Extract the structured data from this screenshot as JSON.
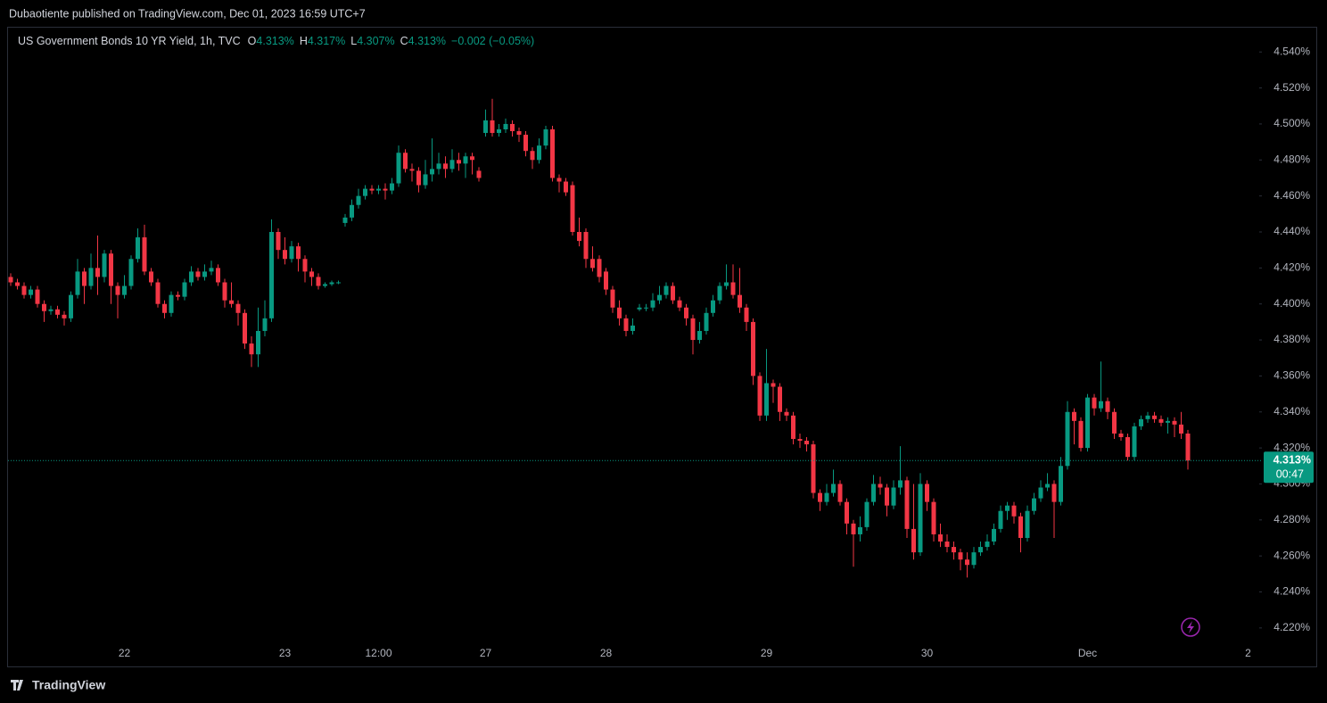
{
  "chart_data": {
    "type": "candlestick",
    "publisher": "Dubaotiente published on TradingView.com, Dec 01, 2023 16:59 UTC+7",
    "title": "US Government Bonds 10 YR Yield, 1h, TVC",
    "legend": [
      {
        "key": "O",
        "value": "4.313%"
      },
      {
        "key": "H",
        "value": "4.317%"
      },
      {
        "key": "L",
        "value": "4.307%"
      },
      {
        "key": "C",
        "value": "4.313%"
      }
    ],
    "change": "−0.002 (−0.05%)",
    "brand": "TradingView",
    "up_color": "#089981",
    "down_color": "#f23645",
    "ylim": [
      4.212,
      4.554
    ],
    "yticks": [
      {
        "value": 4.22,
        "label": "4.220%"
      },
      {
        "value": 4.24,
        "label": "4.240%"
      },
      {
        "value": 4.26,
        "label": "4.260%"
      },
      {
        "value": 4.28,
        "label": "4.280%"
      },
      {
        "value": 4.3,
        "label": "4.300%"
      },
      {
        "value": 4.32,
        "label": "4.320%"
      },
      {
        "value": 4.34,
        "label": "4.340%"
      },
      {
        "value": 4.36,
        "label": "4.360%"
      },
      {
        "value": 4.38,
        "label": "4.380%"
      },
      {
        "value": 4.4,
        "label": "4.400%"
      },
      {
        "value": 4.42,
        "label": "4.420%"
      },
      {
        "value": 4.44,
        "label": "4.440%"
      },
      {
        "value": 4.46,
        "label": "4.460%"
      },
      {
        "value": 4.48,
        "label": "4.480%"
      },
      {
        "value": 4.5,
        "label": "4.500%"
      },
      {
        "value": 4.52,
        "label": "4.520%"
      },
      {
        "value": 4.54,
        "label": "4.540%"
      }
    ],
    "price_line": {
      "value": 4.313,
      "label": "4.313%"
    },
    "countdown": "00:47",
    "categories": [
      null,
      null,
      null,
      null,
      null,
      null,
      null,
      null,
      null,
      null,
      null,
      null,
      null,
      null,
      null,
      null,
      null,
      "22",
      null,
      null,
      null,
      null,
      null,
      null,
      null,
      null,
      null,
      null,
      null,
      null,
      null,
      null,
      null,
      null,
      null,
      null,
      null,
      null,
      null,
      null,
      null,
      "23",
      null,
      null,
      null,
      null,
      null,
      null,
      null,
      null,
      null,
      null,
      null,
      null,
      null,
      "12:00",
      null,
      null,
      null,
      null,
      null,
      null,
      null,
      null,
      null,
      null,
      null,
      null,
      null,
      null,
      null,
      "27",
      null,
      null,
      null,
      null,
      null,
      null,
      null,
      null,
      null,
      null,
      null,
      null,
      null,
      null,
      null,
      null,
      null,
      "28",
      null,
      null,
      null,
      null,
      null,
      null,
      null,
      null,
      null,
      null,
      null,
      null,
      null,
      null,
      null,
      null,
      null,
      null,
      null,
      null,
      null,
      null,
      null,
      "29",
      null,
      null,
      null,
      null,
      null,
      null,
      null,
      null,
      null,
      null,
      null,
      null,
      null,
      null,
      null,
      null,
      null,
      null,
      null,
      null,
      null,
      null,
      null,
      "30",
      null,
      null,
      null,
      null,
      null,
      null,
      null,
      null,
      null,
      null,
      null,
      null,
      null,
      null,
      null,
      null,
      null,
      null,
      null,
      null,
      null,
      null,
      null,
      "Dec",
      null,
      null,
      null,
      null,
      null,
      null,
      null,
      null,
      null,
      null,
      null,
      null,
      null,
      null,
      null,
      null,
      null,
      null,
      null,
      null,
      null,
      null,
      null,
      "2",
      null
    ],
    "ohlc": [
      [
        4.415,
        4.417,
        4.41,
        4.412
      ],
      [
        4.412,
        4.414,
        4.408,
        4.41
      ],
      [
        4.41,
        4.412,
        4.403,
        4.405
      ],
      [
        4.405,
        4.41,
        4.403,
        4.408
      ],
      [
        4.408,
        4.41,
        4.398,
        4.4
      ],
      [
        4.4,
        4.402,
        4.39,
        4.396
      ],
      [
        4.396,
        4.399,
        4.394,
        4.397
      ],
      [
        4.397,
        4.399,
        4.392,
        4.394
      ],
      [
        4.394,
        4.396,
        4.388,
        4.392
      ],
      [
        4.392,
        4.407,
        4.39,
        4.405
      ],
      [
        4.405,
        4.425,
        4.403,
        4.418
      ],
      [
        4.418,
        4.42,
        4.4,
        4.41
      ],
      [
        4.41,
        4.428,
        4.408,
        4.42
      ],
      [
        4.42,
        4.438,
        4.405,
        4.415
      ],
      [
        4.415,
        4.43,
        4.412,
        4.428
      ],
      [
        4.428,
        4.43,
        4.4,
        4.41
      ],
      [
        4.41,
        4.412,
        4.392,
        4.405
      ],
      [
        4.405,
        4.416,
        4.403,
        4.41
      ],
      [
        4.41,
        4.427,
        4.408,
        4.425
      ],
      [
        4.425,
        4.442,
        4.423,
        4.437
      ],
      [
        4.437,
        4.444,
        4.416,
        4.418
      ],
      [
        4.418,
        4.42,
        4.41,
        4.412
      ],
      [
        4.412,
        4.414,
        4.398,
        4.4
      ],
      [
        4.4,
        4.402,
        4.392,
        4.395
      ],
      [
        4.395,
        4.407,
        4.393,
        4.405
      ],
      [
        4.405,
        4.407,
        4.402,
        4.404
      ],
      [
        4.404,
        4.414,
        4.402,
        4.412
      ],
      [
        4.412,
        4.421,
        4.41,
        4.418
      ],
      [
        4.418,
        4.42,
        4.413,
        4.415
      ],
      [
        4.415,
        4.422,
        4.413,
        4.418
      ],
      [
        4.418,
        4.424,
        4.416,
        4.42
      ],
      [
        4.42,
        4.422,
        4.41,
        4.412
      ],
      [
        4.412,
        4.414,
        4.398,
        4.402
      ],
      [
        4.402,
        4.412,
        4.398,
        4.4
      ],
      [
        4.4,
        4.402,
        4.388,
        4.395
      ],
      [
        4.395,
        4.397,
        4.375,
        4.378
      ],
      [
        4.378,
        4.382,
        4.365,
        4.372
      ],
      [
        4.372,
        4.398,
        4.365,
        4.385
      ],
      [
        4.385,
        4.402,
        4.382,
        4.392
      ],
      [
        4.392,
        4.447,
        4.39,
        4.44
      ],
      [
        4.44,
        4.442,
        4.425,
        4.43
      ],
      [
        4.43,
        4.437,
        4.422,
        4.425
      ],
      [
        4.425,
        4.435,
        4.423,
        4.432
      ],
      [
        4.432,
        4.434,
        4.418,
        4.425
      ],
      [
        4.425,
        4.427,
        4.412,
        4.418
      ],
      [
        4.418,
        4.42,
        4.41,
        4.415
      ],
      [
        4.415,
        4.417,
        4.408,
        4.41
      ],
      [
        4.41,
        4.412,
        4.409,
        4.411
      ],
      [
        4.411,
        4.413,
        4.41,
        4.412
      ],
      [
        4.412,
        4.413,
        4.411,
        4.412
      ],
      [
        4.445,
        4.45,
        4.443,
        4.448
      ],
      [
        4.448,
        4.458,
        4.446,
        4.455
      ],
      [
        4.455,
        4.464,
        4.453,
        4.46
      ],
      [
        4.46,
        4.466,
        4.458,
        4.464
      ],
      [
        4.464,
        4.466,
        4.461,
        4.463
      ],
      [
        4.463,
        4.466,
        4.461,
        4.464
      ],
      [
        4.464,
        4.467,
        4.458,
        4.463
      ],
      [
        4.463,
        4.47,
        4.461,
        4.467
      ],
      [
        4.467,
        4.488,
        4.465,
        4.484
      ],
      [
        4.484,
        4.486,
        4.473,
        4.475
      ],
      [
        4.475,
        4.478,
        4.468,
        4.474
      ],
      [
        4.474,
        4.476,
        4.462,
        4.466
      ],
      [
        4.466,
        4.48,
        4.464,
        4.472
      ],
      [
        4.472,
        4.492,
        4.468,
        4.475
      ],
      [
        4.475,
        4.484,
        4.472,
        4.478
      ],
      [
        4.478,
        4.482,
        4.47,
        4.475
      ],
      [
        4.475,
        4.486,
        4.473,
        4.48
      ],
      [
        4.48,
        4.484,
        4.474,
        4.478
      ],
      [
        4.478,
        4.484,
        4.47,
        4.482
      ],
      [
        4.482,
        4.484,
        4.472,
        4.48
      ],
      [
        4.474,
        4.476,
        4.468,
        4.47
      ],
      [
        4.495,
        4.508,
        4.493,
        4.502
      ],
      [
        4.502,
        4.514,
        4.493,
        4.495
      ],
      [
        4.495,
        4.5,
        4.493,
        4.497
      ],
      [
        4.497,
        4.503,
        4.495,
        4.5
      ],
      [
        4.5,
        4.502,
        4.493,
        4.496
      ],
      [
        4.496,
        4.498,
        4.49,
        4.494
      ],
      [
        4.494,
        4.496,
        4.482,
        4.485
      ],
      [
        4.485,
        4.487,
        4.475,
        4.48
      ],
      [
        4.48,
        4.492,
        4.478,
        4.488
      ],
      [
        4.488,
        4.499,
        4.486,
        4.497
      ],
      [
        4.497,
        4.499,
        4.468,
        4.47
      ],
      [
        4.47,
        4.472,
        4.462,
        4.468
      ],
      [
        4.468,
        4.47,
        4.46,
        4.462
      ],
      [
        4.466,
        4.468,
        4.438,
        4.44
      ],
      [
        4.44,
        4.448,
        4.432,
        4.435
      ],
      [
        4.44,
        4.442,
        4.42,
        4.425
      ],
      [
        4.425,
        4.432,
        4.418,
        4.42
      ],
      [
        4.425,
        4.427,
        4.412,
        4.415
      ],
      [
        4.418,
        4.42,
        4.405,
        4.408
      ],
      [
        4.408,
        4.41,
        4.395,
        4.398
      ],
      [
        4.398,
        4.402,
        4.388,
        4.392
      ],
      [
        4.392,
        4.394,
        4.382,
        4.385
      ],
      [
        4.385,
        4.392,
        4.383,
        4.388
      ],
      [
        4.397,
        4.4,
        4.396,
        4.398
      ],
      [
        4.398,
        4.4,
        4.396,
        4.398
      ],
      [
        4.398,
        4.406,
        4.396,
        4.402
      ],
      [
        4.402,
        4.41,
        4.4,
        4.405
      ],
      [
        4.405,
        4.412,
        4.403,
        4.41
      ],
      [
        4.41,
        4.412,
        4.4,
        4.402
      ],
      [
        4.402,
        4.404,
        4.396,
        4.398
      ],
      [
        4.398,
        4.4,
        4.388,
        4.392
      ],
      [
        4.392,
        4.394,
        4.372,
        4.38
      ],
      [
        4.38,
        4.39,
        4.378,
        4.385
      ],
      [
        4.385,
        4.398,
        4.383,
        4.395
      ],
      [
        4.395,
        4.405,
        4.393,
        4.402
      ],
      [
        4.402,
        4.412,
        4.4,
        4.41
      ],
      [
        4.41,
        4.422,
        4.408,
        4.412
      ],
      [
        4.412,
        4.422,
        4.403,
        4.405
      ],
      [
        4.405,
        4.42,
        4.395,
        4.398
      ],
      [
        4.398,
        4.4,
        4.385,
        4.39
      ],
      [
        4.39,
        4.392,
        4.355,
        4.36
      ],
      [
        4.36,
        4.362,
        4.335,
        4.338
      ],
      [
        4.338,
        4.375,
        4.335,
        4.356
      ],
      [
        4.356,
        4.358,
        4.345,
        4.354
      ],
      [
        4.354,
        4.356,
        4.335,
        4.34
      ],
      [
        4.34,
        4.342,
        4.335,
        4.338
      ],
      [
        4.338,
        4.34,
        4.322,
        4.325
      ],
      [
        4.325,
        4.328,
        4.32,
        4.324
      ],
      [
        4.324,
        4.326,
        4.318,
        4.322
      ],
      [
        4.322,
        4.324,
        4.292,
        4.295
      ],
      [
        4.295,
        4.297,
        4.285,
        4.29
      ],
      [
        4.29,
        4.3,
        4.288,
        4.295
      ],
      [
        4.295,
        4.308,
        4.293,
        4.3
      ],
      [
        4.3,
        4.302,
        4.288,
        4.29
      ],
      [
        4.29,
        4.292,
        4.272,
        4.278
      ],
      [
        4.278,
        4.28,
        4.254,
        4.272
      ],
      [
        4.272,
        4.282,
        4.268,
        4.276
      ],
      [
        4.276,
        4.292,
        4.274,
        4.29
      ],
      [
        4.29,
        4.305,
        4.288,
        4.3
      ],
      [
        4.3,
        4.304,
        4.294,
        4.298
      ],
      [
        4.298,
        4.3,
        4.282,
        4.288
      ],
      [
        4.288,
        4.302,
        4.286,
        4.298
      ],
      [
        4.298,
        4.321,
        4.294,
        4.302
      ],
      [
        4.302,
        4.304,
        4.27,
        4.275
      ],
      [
        4.275,
        4.3,
        4.258,
        4.262
      ],
      [
        4.262,
        4.306,
        4.26,
        4.3
      ],
      [
        4.3,
        4.302,
        4.285,
        4.29
      ],
      [
        4.29,
        4.292,
        4.268,
        4.272
      ],
      [
        4.272,
        4.278,
        4.265,
        4.268
      ],
      [
        4.268,
        4.272,
        4.262,
        4.265
      ],
      [
        4.265,
        4.268,
        4.258,
        4.262
      ],
      [
        4.262,
        4.264,
        4.252,
        4.258
      ],
      [
        4.258,
        4.262,
        4.248,
        4.255
      ],
      [
        4.255,
        4.265,
        4.253,
        4.262
      ],
      [
        4.262,
        4.268,
        4.26,
        4.265
      ],
      [
        4.265,
        4.272,
        4.263,
        4.268
      ],
      [
        4.268,
        4.278,
        4.266,
        4.275
      ],
      [
        4.275,
        4.288,
        4.273,
        4.285
      ],
      [
        4.285,
        4.29,
        4.28,
        4.288
      ],
      [
        4.288,
        4.29,
        4.278,
        4.282
      ],
      [
        4.282,
        4.284,
        4.262,
        4.27
      ],
      [
        4.27,
        4.288,
        4.268,
        4.285
      ],
      [
        4.285,
        4.295,
        4.283,
        4.292
      ],
      [
        4.292,
        4.302,
        4.29,
        4.298
      ],
      [
        4.298,
        4.306,
        4.296,
        4.3
      ],
      [
        4.3,
        4.302,
        4.27,
        4.29
      ],
      [
        4.29,
        4.315,
        4.288,
        4.31
      ],
      [
        4.31,
        4.346,
        4.308,
        4.34
      ],
      [
        4.34,
        4.342,
        4.322,
        4.335
      ],
      [
        4.335,
        4.337,
        4.318,
        4.32
      ],
      [
        4.32,
        4.35,
        4.318,
        4.348
      ],
      [
        4.348,
        4.35,
        4.338,
        4.342
      ],
      [
        4.342,
        4.368,
        4.34,
        4.346
      ],
      [
        4.346,
        4.348,
        4.336,
        4.34
      ],
      [
        4.34,
        4.342,
        4.325,
        4.328
      ],
      [
        4.328,
        4.33,
        4.324,
        4.326
      ],
      [
        4.326,
        4.328,
        4.313,
        4.315
      ],
      [
        4.315,
        4.334,
        4.313,
        4.332
      ],
      [
        4.332,
        4.338,
        4.33,
        4.336
      ],
      [
        4.336,
        4.34,
        4.334,
        4.338
      ],
      [
        4.338,
        4.34,
        4.334,
        4.336
      ],
      [
        4.336,
        4.338,
        4.332,
        4.334
      ],
      [
        4.334,
        4.337,
        4.328,
        4.335
      ],
      [
        4.335,
        4.337,
        4.326,
        4.333
      ],
      [
        4.333,
        4.34,
        4.325,
        4.328
      ],
      [
        4.328,
        4.33,
        4.308,
        4.313
      ],
      null,
      null,
      null,
      null,
      null,
      null,
      null,
      null,
      null,
      null
    ]
  }
}
